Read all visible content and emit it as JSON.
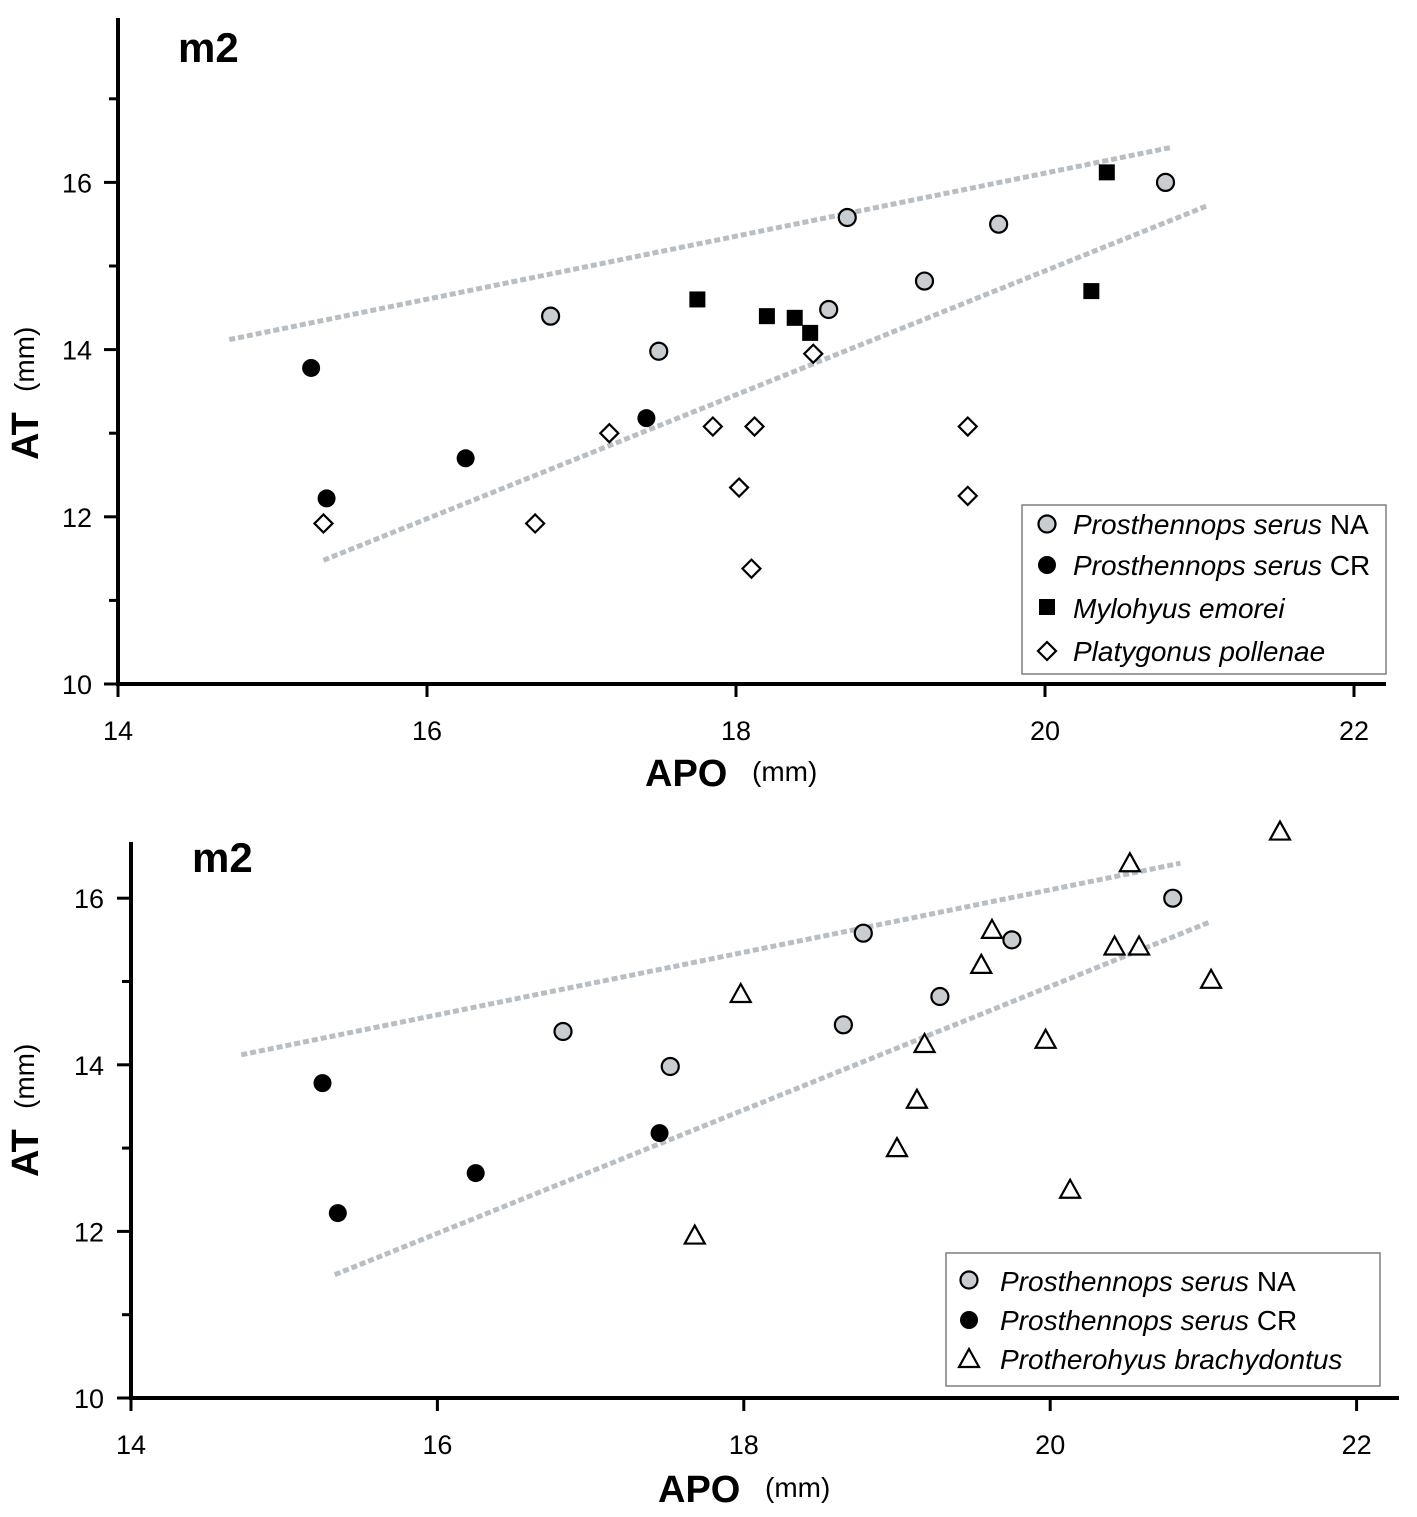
{
  "chart_data": [
    {
      "type": "scatter",
      "title": "m2",
      "xlabel": "APO",
      "xunit": "(mm)",
      "ylabel": "AT",
      "yunit": "(mm)",
      "xlim": [
        14,
        22.2
      ],
      "ylim": [
        10,
        17.5
      ],
      "xticks": [
        14,
        16,
        18,
        20,
        22
      ],
      "yticks": [
        10,
        12,
        14,
        16
      ],
      "grid": false,
      "legend_position": "bottom-right",
      "series": [
        {
          "name": "Prosthennops serus NA",
          "name_italic": "Prosthennops serus",
          "name_rest": " NA",
          "marker": "circle-gray",
          "color": "#c8cdd2",
          "x": [
            16.8,
            17.5,
            18.6,
            18.72,
            19.22,
            19.7,
            20.78
          ],
          "y": [
            14.4,
            13.98,
            14.48,
            15.58,
            14.82,
            15.5,
            16.0
          ]
        },
        {
          "name": "Prosthennops serus CR",
          "name_italic": "Prosthennops serus",
          "name_rest": " CR",
          "marker": "circle-black",
          "color": "#000000",
          "x": [
            15.25,
            15.35,
            16.25,
            17.42
          ],
          "y": [
            13.78,
            12.22,
            12.7,
            13.18
          ]
        },
        {
          "name": "Mylohyus emorei",
          "name_italic": "Mylohyus emorei",
          "name_rest": "",
          "marker": "square-black",
          "color": "#000000",
          "x": [
            17.75,
            18.2,
            18.38,
            18.48,
            20.3,
            20.4
          ],
          "y": [
            14.6,
            14.4,
            14.38,
            14.2,
            14.7,
            16.12
          ]
        },
        {
          "name": "Platygonus pollenae",
          "name_italic": "Platygonus pollenae",
          "name_rest": "",
          "marker": "diamond-open",
          "color": "#000000",
          "x": [
            15.33,
            16.7,
            17.18,
            17.85,
            18.02,
            18.1,
            18.12,
            18.5,
            19.5,
            19.5
          ],
          "y": [
            11.92,
            11.92,
            13.0,
            13.08,
            12.35,
            11.38,
            13.08,
            13.95,
            13.08,
            12.25
          ]
        }
      ],
      "annotations": [
        {
          "type": "dashed-line",
          "color": "#b7bec4",
          "x": [
            14.72,
            20.82
          ],
          "y": [
            14.12,
            16.42
          ]
        },
        {
          "type": "dashed-line",
          "color": "#b7bec4",
          "x": [
            15.33,
            21.05
          ],
          "y": [
            11.48,
            15.72
          ]
        }
      ]
    },
    {
      "type": "scatter",
      "title": "m2",
      "xlabel": "APO",
      "xunit": "(mm)",
      "ylabel": "AT",
      "yunit": "(mm)",
      "xlim": [
        14,
        22.1
      ],
      "ylim": [
        10,
        16.7
      ],
      "xticks": [
        14,
        16,
        18,
        20,
        22
      ],
      "yticks": [
        10,
        12,
        14,
        16
      ],
      "grid": false,
      "legend_position": "bottom-right",
      "series": [
        {
          "name": "Prosthennops serus NA",
          "name_italic": "Prosthennops serus",
          "name_rest": " NA",
          "marker": "circle-gray",
          "color": "#c8cdd2",
          "x": [
            16.82,
            17.52,
            18.65,
            18.78,
            19.28,
            19.75,
            20.8
          ],
          "y": [
            14.4,
            13.98,
            14.48,
            15.58,
            14.82,
            15.5,
            16.0
          ]
        },
        {
          "name": "Prosthennops serus CR",
          "name_italic": "Prosthennops serus",
          "name_rest": " CR",
          "marker": "circle-black",
          "color": "#000000",
          "x": [
            15.25,
            15.35,
            16.25,
            17.45
          ],
          "y": [
            13.78,
            12.22,
            12.7,
            13.18
          ]
        },
        {
          "name": "Protherohyus brachydontus",
          "name_italic": "Protherohyus brachydontus",
          "name_rest": "",
          "marker": "triangle-open",
          "color": "#000000",
          "x": [
            17.68,
            17.98,
            19.0,
            19.13,
            19.18,
            19.55,
            19.62,
            19.97,
            20.13,
            20.42,
            20.52,
            20.58,
            21.05,
            21.5
          ],
          "y": [
            11.95,
            14.85,
            13.0,
            13.58,
            14.25,
            15.2,
            15.62,
            14.3,
            12.5,
            15.42,
            16.42,
            15.42,
            15.02,
            16.8
          ]
        }
      ],
      "annotations": [
        {
          "type": "dashed-line",
          "color": "#b7bec4",
          "x": [
            14.72,
            20.85
          ],
          "y": [
            14.12,
            16.42
          ]
        },
        {
          "type": "dashed-line",
          "color": "#b7bec4",
          "x": [
            15.33,
            21.05
          ],
          "y": [
            11.48,
            15.72
          ]
        }
      ]
    }
  ]
}
